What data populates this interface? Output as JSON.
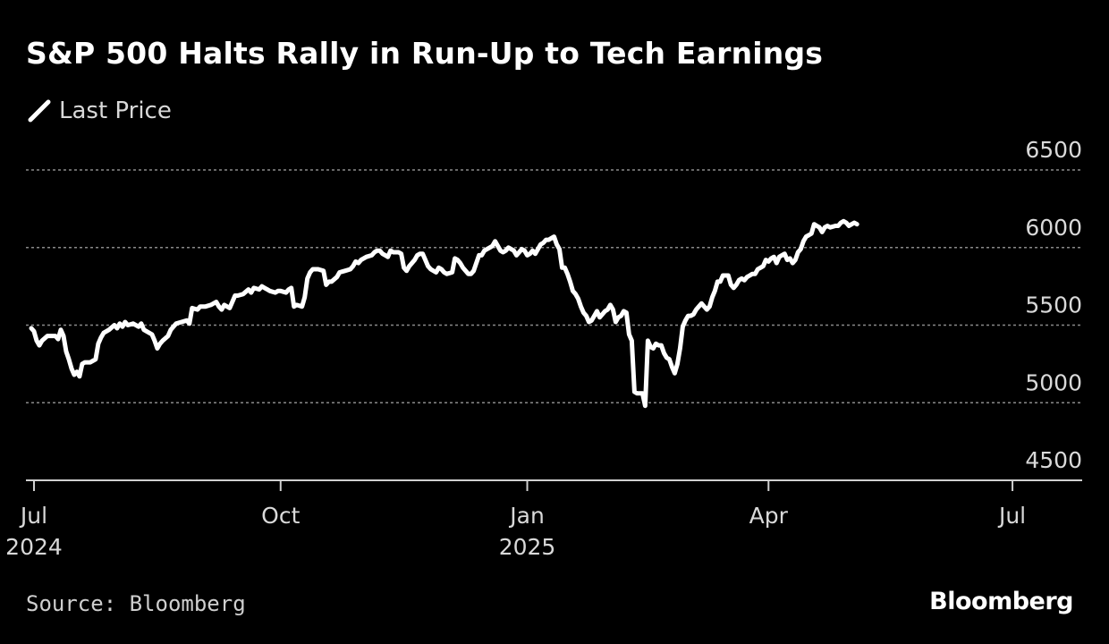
{
  "colors": {
    "background": "#000000",
    "line": "#ffffff",
    "grid": "#8a8a8a",
    "axis": "#d0d0d0",
    "text": "#d9d9d9"
  },
  "footer": {
    "source": "Source: Bloomberg",
    "brand": "Bloomberg"
  },
  "chart_data": {
    "type": "line",
    "title": "S&P 500 Halts Rally in Run-Up to Tech Earnings",
    "legend": [
      {
        "label": "Last Price",
        "icon": "line-swatch-icon"
      }
    ],
    "legend_position": "top-left",
    "xlabel": "",
    "ylabel": "",
    "y_axis_side": "right",
    "ylim": [
      4500,
      6500
    ],
    "yticks": [
      4500,
      5000,
      5500,
      6000,
      6500
    ],
    "ytick_labels": [
      "4500",
      "5000",
      "5500",
      "6000",
      "6500"
    ],
    "grid": "dashed horizontal",
    "x_domain": [
      -3,
      391
    ],
    "x_unit": "days since 2024-07-01",
    "xticks": [
      {
        "t": 0,
        "label": "Jul",
        "sublabel": "2024"
      },
      {
        "t": 92,
        "label": "Oct",
        "sublabel": ""
      },
      {
        "t": 184,
        "label": "Jan",
        "sublabel": "2025"
      },
      {
        "t": 274,
        "label": "Apr",
        "sublabel": ""
      },
      {
        "t": 365,
        "label": "Jul",
        "sublabel": ""
      }
    ],
    "series": [
      {
        "name": "Last Price",
        "points": [
          [
            -1,
            5480
          ],
          [
            0,
            5460
          ],
          [
            1,
            5400
          ],
          [
            2,
            5370
          ],
          [
            3,
            5400
          ],
          [
            5,
            5430
          ],
          [
            8,
            5430
          ],
          [
            9,
            5410
          ],
          [
            10,
            5470
          ],
          [
            11,
            5430
          ],
          [
            12,
            5330
          ],
          [
            13,
            5280
          ],
          [
            14,
            5220
          ],
          [
            15,
            5180
          ],
          [
            16,
            5200
          ],
          [
            17,
            5170
          ],
          [
            18,
            5250
          ],
          [
            19,
            5260
          ],
          [
            21,
            5260
          ],
          [
            23,
            5280
          ],
          [
            24,
            5380
          ],
          [
            25,
            5420
          ],
          [
            26,
            5450
          ],
          [
            28,
            5470
          ],
          [
            30,
            5500
          ],
          [
            31,
            5480
          ],
          [
            32,
            5510
          ],
          [
            33,
            5490
          ],
          [
            34,
            5520
          ],
          [
            35,
            5500
          ],
          [
            37,
            5510
          ],
          [
            39,
            5490
          ],
          [
            40,
            5510
          ],
          [
            41,
            5470
          ],
          [
            42,
            5460
          ],
          [
            44,
            5440
          ],
          [
            45,
            5400
          ],
          [
            46,
            5350
          ],
          [
            47,
            5380
          ],
          [
            48,
            5400
          ],
          [
            50,
            5430
          ],
          [
            51,
            5470
          ],
          [
            52,
            5490
          ],
          [
            53,
            5510
          ],
          [
            55,
            5520
          ],
          [
            57,
            5530
          ],
          [
            58,
            5510
          ],
          [
            59,
            5610
          ],
          [
            61,
            5600
          ],
          [
            62,
            5620
          ],
          [
            64,
            5620
          ],
          [
            66,
            5630
          ],
          [
            68,
            5650
          ],
          [
            69,
            5620
          ],
          [
            70,
            5600
          ],
          [
            71,
            5630
          ],
          [
            72,
            5620
          ],
          [
            73,
            5610
          ],
          [
            74,
            5650
          ],
          [
            75,
            5690
          ],
          [
            76,
            5690
          ],
          [
            78,
            5700
          ],
          [
            80,
            5730
          ],
          [
            81,
            5710
          ],
          [
            82,
            5740
          ],
          [
            84,
            5730
          ],
          [
            85,
            5750
          ],
          [
            86,
            5740
          ],
          [
            87,
            5730
          ],
          [
            88,
            5720
          ],
          [
            90,
            5710
          ],
          [
            91,
            5720
          ],
          [
            92,
            5720
          ],
          [
            94,
            5710
          ],
          [
            95,
            5730
          ],
          [
            96,
            5740
          ],
          [
            97,
            5620
          ],
          [
            98,
            5630
          ],
          [
            100,
            5620
          ],
          [
            101,
            5680
          ],
          [
            102,
            5800
          ],
          [
            103,
            5840
          ],
          [
            104,
            5860
          ],
          [
            106,
            5860
          ],
          [
            108,
            5850
          ],
          [
            109,
            5760
          ],
          [
            110,
            5780
          ],
          [
            111,
            5780
          ],
          [
            113,
            5810
          ],
          [
            114,
            5840
          ],
          [
            116,
            5850
          ],
          [
            118,
            5860
          ],
          [
            119,
            5880
          ],
          [
            120,
            5910
          ],
          [
            121,
            5900
          ],
          [
            122,
            5920
          ],
          [
            124,
            5940
          ],
          [
            126,
            5950
          ],
          [
            127,
            5970
          ],
          [
            128,
            5980
          ],
          [
            129,
            5980
          ],
          [
            130,
            5960
          ],
          [
            131,
            5950
          ],
          [
            132,
            5940
          ],
          [
            133,
            5980
          ],
          [
            134,
            5970
          ],
          [
            136,
            5970
          ],
          [
            137,
            5960
          ],
          [
            138,
            5870
          ],
          [
            139,
            5850
          ],
          [
            140,
            5880
          ],
          [
            141,
            5900
          ],
          [
            142,
            5920
          ],
          [
            143,
            5950
          ],
          [
            144,
            5960
          ],
          [
            145,
            5960
          ],
          [
            146,
            5920
          ],
          [
            147,
            5880
          ],
          [
            148,
            5860
          ],
          [
            150,
            5840
          ],
          [
            151,
            5870
          ],
          [
            152,
            5860
          ],
          [
            153,
            5840
          ],
          [
            154,
            5830
          ],
          [
            156,
            5840
          ],
          [
            157,
            5930
          ],
          [
            158,
            5920
          ],
          [
            159,
            5900
          ],
          [
            160,
            5870
          ],
          [
            161,
            5850
          ],
          [
            162,
            5830
          ],
          [
            163,
            5830
          ],
          [
            164,
            5850
          ],
          [
            165,
            5900
          ],
          [
            166,
            5950
          ],
          [
            167,
            5950
          ],
          [
            168,
            5980
          ],
          [
            170,
            6000
          ],
          [
            171,
            6010
          ],
          [
            172,
            6040
          ],
          [
            173,
            6010
          ],
          [
            174,
            5980
          ],
          [
            175,
            5970
          ],
          [
            176,
            5980
          ],
          [
            177,
            6000
          ],
          [
            179,
            5980
          ],
          [
            180,
            5950
          ],
          [
            181,
            5970
          ],
          [
            182,
            5990
          ],
          [
            183,
            5980
          ],
          [
            184,
            5950
          ],
          [
            185,
            5960
          ],
          [
            186,
            5980
          ],
          [
            187,
            5960
          ],
          [
            189,
            6020
          ],
          [
            190,
            6030
          ],
          [
            191,
            6050
          ],
          [
            192,
            6050
          ],
          [
            193,
            6060
          ],
          [
            194,
            6070
          ],
          [
            195,
            6020
          ],
          [
            196,
            5990
          ],
          [
            197,
            5870
          ],
          [
            198,
            5870
          ],
          [
            199,
            5830
          ],
          [
            200,
            5780
          ],
          [
            201,
            5720
          ],
          [
            202,
            5700
          ],
          [
            203,
            5670
          ],
          [
            204,
            5620
          ],
          [
            205,
            5580
          ],
          [
            206,
            5560
          ],
          [
            207,
            5520
          ],
          [
            208,
            5530
          ],
          [
            209,
            5560
          ],
          [
            210,
            5590
          ],
          [
            211,
            5550
          ],
          [
            212,
            5570
          ],
          [
            213,
            5590
          ],
          [
            214,
            5600
          ],
          [
            215,
            5630
          ],
          [
            216,
            5600
          ],
          [
            217,
            5520
          ],
          [
            218,
            5550
          ],
          [
            219,
            5560
          ],
          [
            220,
            5590
          ],
          [
            221,
            5580
          ],
          [
            222,
            5440
          ],
          [
            223,
            5400
          ],
          [
            224,
            5070
          ],
          [
            225,
            5060
          ],
          [
            226,
            5060
          ],
          [
            227,
            5060
          ],
          [
            228,
            4980
          ],
          [
            229,
            5400
          ],
          [
            230,
            5360
          ],
          [
            231,
            5350
          ],
          [
            232,
            5380
          ],
          [
            233,
            5370
          ],
          [
            234,
            5370
          ],
          [
            235,
            5320
          ],
          [
            236,
            5290
          ],
          [
            237,
            5280
          ],
          [
            238,
            5230
          ],
          [
            239,
            5190
          ],
          [
            240,
            5250
          ],
          [
            241,
            5350
          ],
          [
            242,
            5490
          ],
          [
            243,
            5530
          ],
          [
            244,
            5560
          ],
          [
            245,
            5560
          ],
          [
            246,
            5570
          ],
          [
            247,
            5600
          ],
          [
            248,
            5620
          ],
          [
            249,
            5640
          ],
          [
            250,
            5620
          ],
          [
            251,
            5600
          ],
          [
            252,
            5620
          ],
          [
            253,
            5680
          ],
          [
            254,
            5720
          ],
          [
            255,
            5780
          ],
          [
            256,
            5780
          ],
          [
            257,
            5820
          ],
          [
            258,
            5820
          ],
          [
            259,
            5820
          ],
          [
            260,
            5760
          ],
          [
            261,
            5740
          ],
          [
            262,
            5760
          ],
          [
            263,
            5790
          ],
          [
            264,
            5800
          ],
          [
            265,
            5790
          ],
          [
            266,
            5810
          ],
          [
            267,
            5820
          ],
          [
            268,
            5830
          ],
          [
            269,
            5830
          ],
          [
            270,
            5860
          ],
          [
            271,
            5870
          ],
          [
            272,
            5880
          ],
          [
            273,
            5920
          ],
          [
            274,
            5910
          ],
          [
            275,
            5930
          ],
          [
            276,
            5940
          ],
          [
            277,
            5900
          ],
          [
            278,
            5940
          ],
          [
            279,
            5950
          ],
          [
            280,
            5960
          ],
          [
            281,
            5920
          ],
          [
            282,
            5930
          ],
          [
            283,
            5900
          ],
          [
            284,
            5920
          ],
          [
            285,
            5970
          ],
          [
            286,
            5990
          ],
          [
            287,
            6040
          ],
          [
            288,
            6070
          ],
          [
            289,
            6080
          ],
          [
            290,
            6090
          ],
          [
            291,
            6150
          ],
          [
            292,
            6140
          ],
          [
            293,
            6130
          ],
          [
            294,
            6100
          ],
          [
            295,
            6130
          ],
          [
            296,
            6140
          ],
          [
            297,
            6130
          ],
          [
            299,
            6140
          ],
          [
            300,
            6140
          ],
          [
            301,
            6160
          ],
          [
            302,
            6170
          ],
          [
            303,
            6160
          ],
          [
            304,
            6140
          ],
          [
            305,
            6150
          ],
          [
            306,
            6160
          ],
          [
            307,
            6150
          ]
        ]
      }
    ]
  }
}
